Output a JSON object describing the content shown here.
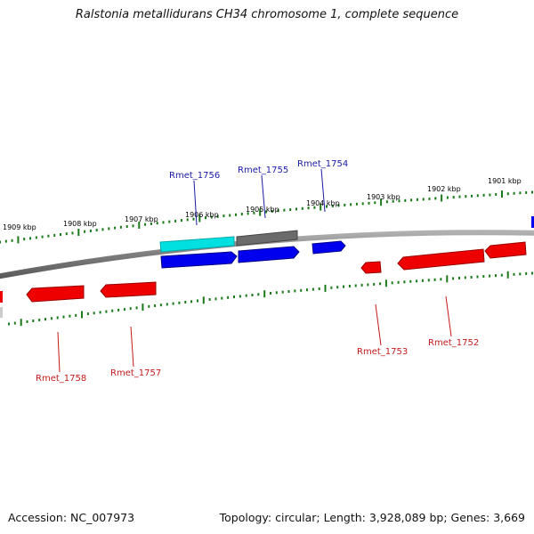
{
  "title": "Ralstonia metallidurans CH34 chromosome 1, complete sequence",
  "footer": {
    "accession": "Accession: NC_007973",
    "summary": "Topology: circular; Length: 3,928,089 bp; Genes: 3,669"
  },
  "colors": {
    "forward_gene": "#0000ee",
    "reverse_gene": "#ee0000",
    "highlight_gene": "#00dddd",
    "gray_gene": "#666666",
    "backbone": "#808080",
    "ticks": "#1a7a1a",
    "label_forward": "#1a1aa6",
    "label_reverse": "#c41a1a"
  },
  "tick_labels": [
    "1909 kbp",
    "1908 kbp",
    "1907 kbp",
    "1906 kbp",
    "1905 kbp",
    "1904 kbp",
    "1903 kbp",
    "1902 kbp",
    "1901 kbp"
  ],
  "genes": [
    {
      "name": "Rmet_1756",
      "strand": "forward",
      "color": "highlight_gene"
    },
    {
      "name": "Rmet_1755",
      "strand": "forward",
      "color": "gray_gene"
    },
    {
      "name": "Rmet_1754",
      "strand": "forward",
      "color": "forward_gene"
    },
    {
      "name": "Rmet_1753",
      "strand": "reverse",
      "color": "reverse_gene"
    },
    {
      "name": "Rmet_1752",
      "strand": "reverse",
      "color": "reverse_gene"
    },
    {
      "name": "Rmet_1757",
      "strand": "reverse",
      "color": "reverse_gene"
    },
    {
      "name": "Rmet_1758",
      "strand": "reverse",
      "color": "reverse_gene"
    }
  ]
}
